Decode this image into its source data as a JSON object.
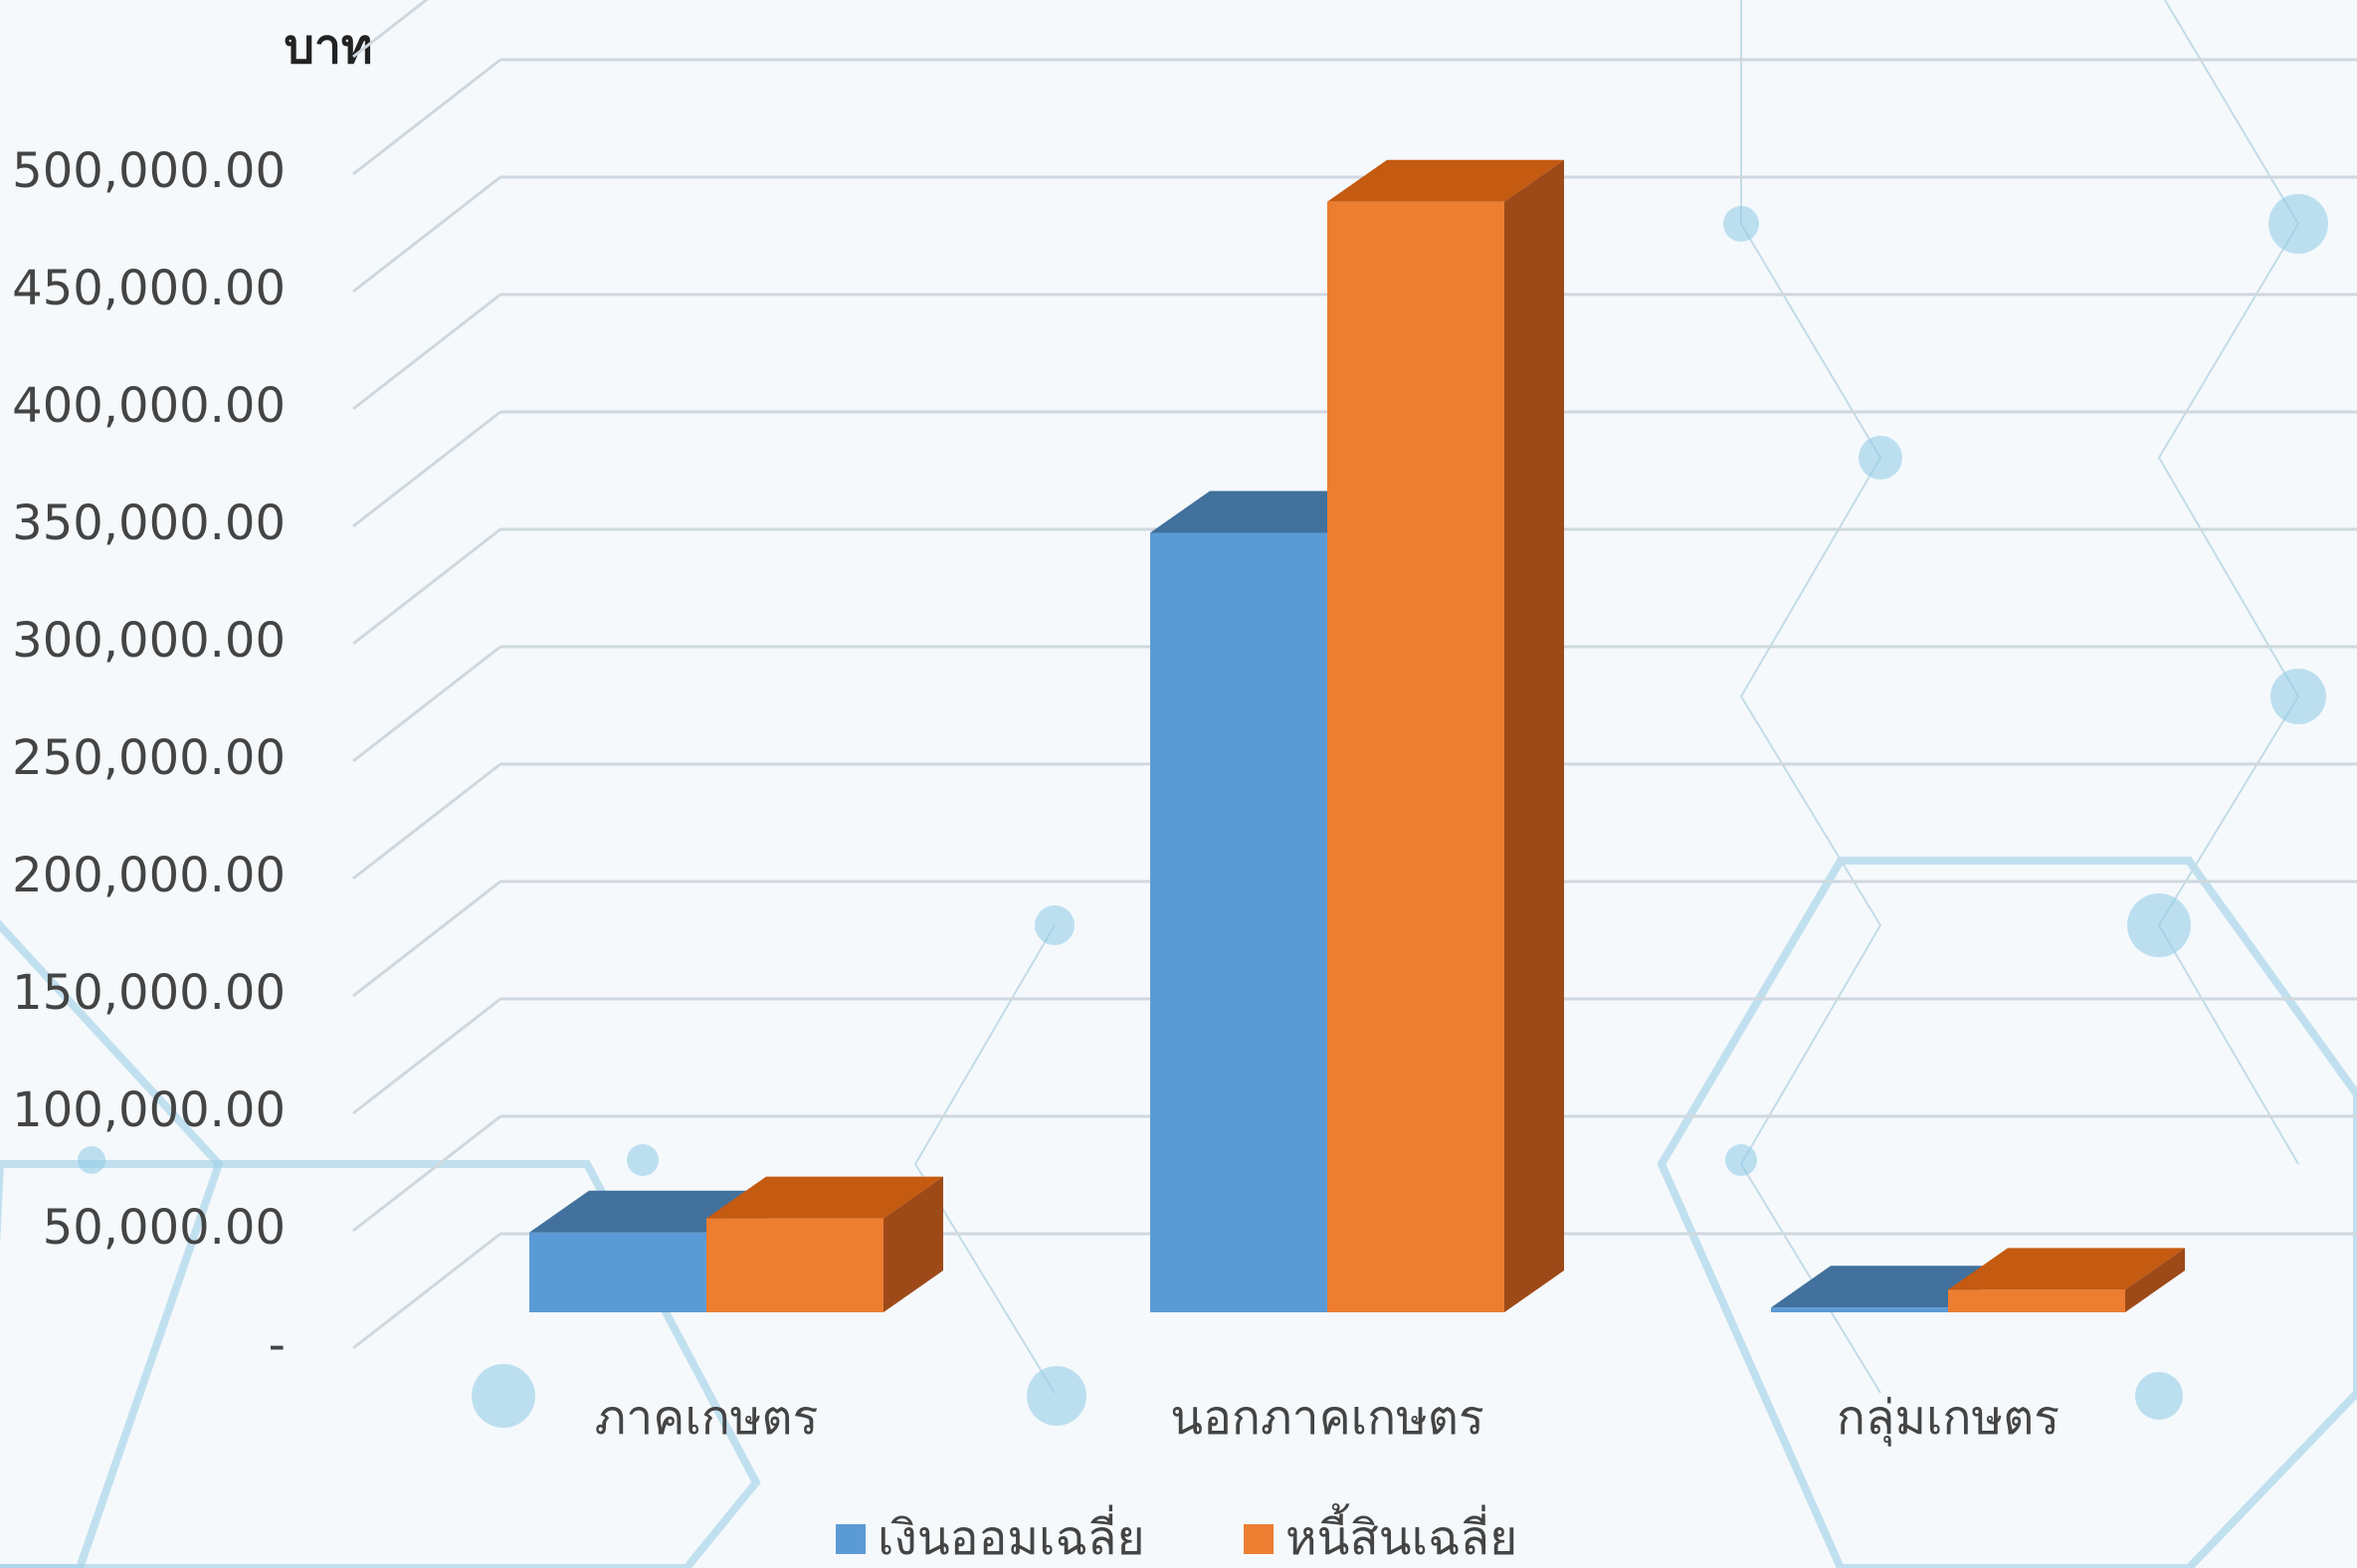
{
  "chart_data": {
    "type": "bar",
    "y_label": "บาท",
    "categories": [
      "ภาคเกษตร",
      "นอกภาคเกษตร",
      "กลุ่มเกษตร"
    ],
    "series": [
      {
        "name": "เงินออมเฉลี่ย",
        "color": "#5b9bd5",
        "values": [
          34000,
          332000,
          2000
        ]
      },
      {
        "name": "หนี้สินเฉลี่ย",
        "color": "#ed7d31",
        "values": [
          40000,
          473000,
          9600
        ]
      }
    ],
    "ylim": [
      0,
      550000
    ],
    "yticks": [
      {
        "value": 0,
        "label": "-"
      },
      {
        "value": 50000,
        "label": "50,000.00"
      },
      {
        "value": 100000,
        "label": "100,000.00"
      },
      {
        "value": 150000,
        "label": "150,000.00"
      },
      {
        "value": 200000,
        "label": "200,000.00"
      },
      {
        "value": 250000,
        "label": "250,000.00"
      },
      {
        "value": 300000,
        "label": "300,000.00"
      },
      {
        "value": 350000,
        "label": "350,000.00"
      },
      {
        "value": 400000,
        "label": "400,000.00"
      },
      {
        "value": 450000,
        "label": "450,000.00"
      },
      {
        "value": 500000,
        "label": "500,000.00"
      }
    ],
    "grid": true
  }
}
